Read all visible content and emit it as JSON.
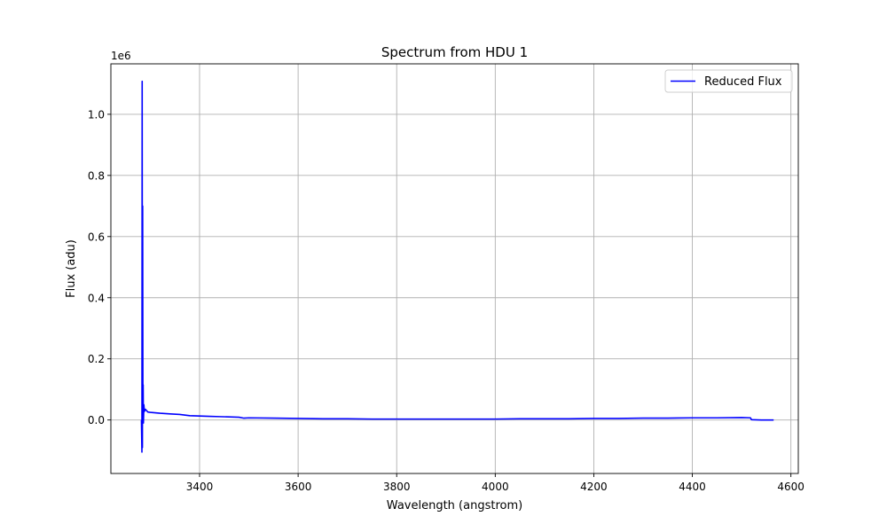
{
  "chart_data": {
    "type": "line",
    "title": "Spectrum from HDU 1",
    "xlabel": "Wavelength (angstrom)",
    "ylabel": "Flux (adu)",
    "y_offset_label": "1e6",
    "xlim": [
      3220,
      4615
    ],
    "ylim": [
      -0.175,
      1.165
    ],
    "x_ticks": [
      3400,
      3600,
      3800,
      4000,
      4200,
      4400,
      4600
    ],
    "x_tick_labels": [
      "3400",
      "3600",
      "3800",
      "4000",
      "4200",
      "4400",
      "4600"
    ],
    "y_ticks": [
      0.0,
      0.2,
      0.4,
      0.6,
      0.8,
      1.0
    ],
    "y_tick_labels": [
      "0.0",
      "0.2",
      "0.4",
      "0.6",
      "0.8",
      "1.0"
    ],
    "grid": true,
    "legend_position": "top-right",
    "series": [
      {
        "name": "Reduced Flux",
        "color": "#0000ff",
        "x": [
          3282,
          3283,
          3283.5,
          3284,
          3284.5,
          3285,
          3285.5,
          3286,
          3287,
          3288,
          3290,
          3295,
          3300,
          3320,
          3340,
          3360,
          3380,
          3400,
          3420,
          3440,
          3460,
          3480,
          3490,
          3500,
          3550,
          3600,
          3650,
          3700,
          3750,
          3800,
          3850,
          3900,
          3950,
          4000,
          4050,
          4100,
          4150,
          4200,
          4250,
          4300,
          4350,
          4400,
          4450,
          4500,
          4518,
          4520,
          4540,
          4565
        ],
        "y": [
          0.0,
          -0.105,
          1.108,
          -0.09,
          0.7,
          0.02,
          0.115,
          -0.01,
          0.05,
          0.028,
          0.035,
          0.026,
          0.025,
          0.022,
          0.02,
          0.018,
          0.014,
          0.013,
          0.012,
          0.011,
          0.01,
          0.009,
          0.006,
          0.007,
          0.006,
          0.005,
          0.004,
          0.004,
          0.003,
          0.003,
          0.003,
          0.003,
          0.003,
          0.003,
          0.004,
          0.004,
          0.004,
          0.005,
          0.005,
          0.006,
          0.006,
          0.007,
          0.007,
          0.008,
          0.007,
          0.001,
          0.0,
          0.0
        ]
      }
    ]
  }
}
